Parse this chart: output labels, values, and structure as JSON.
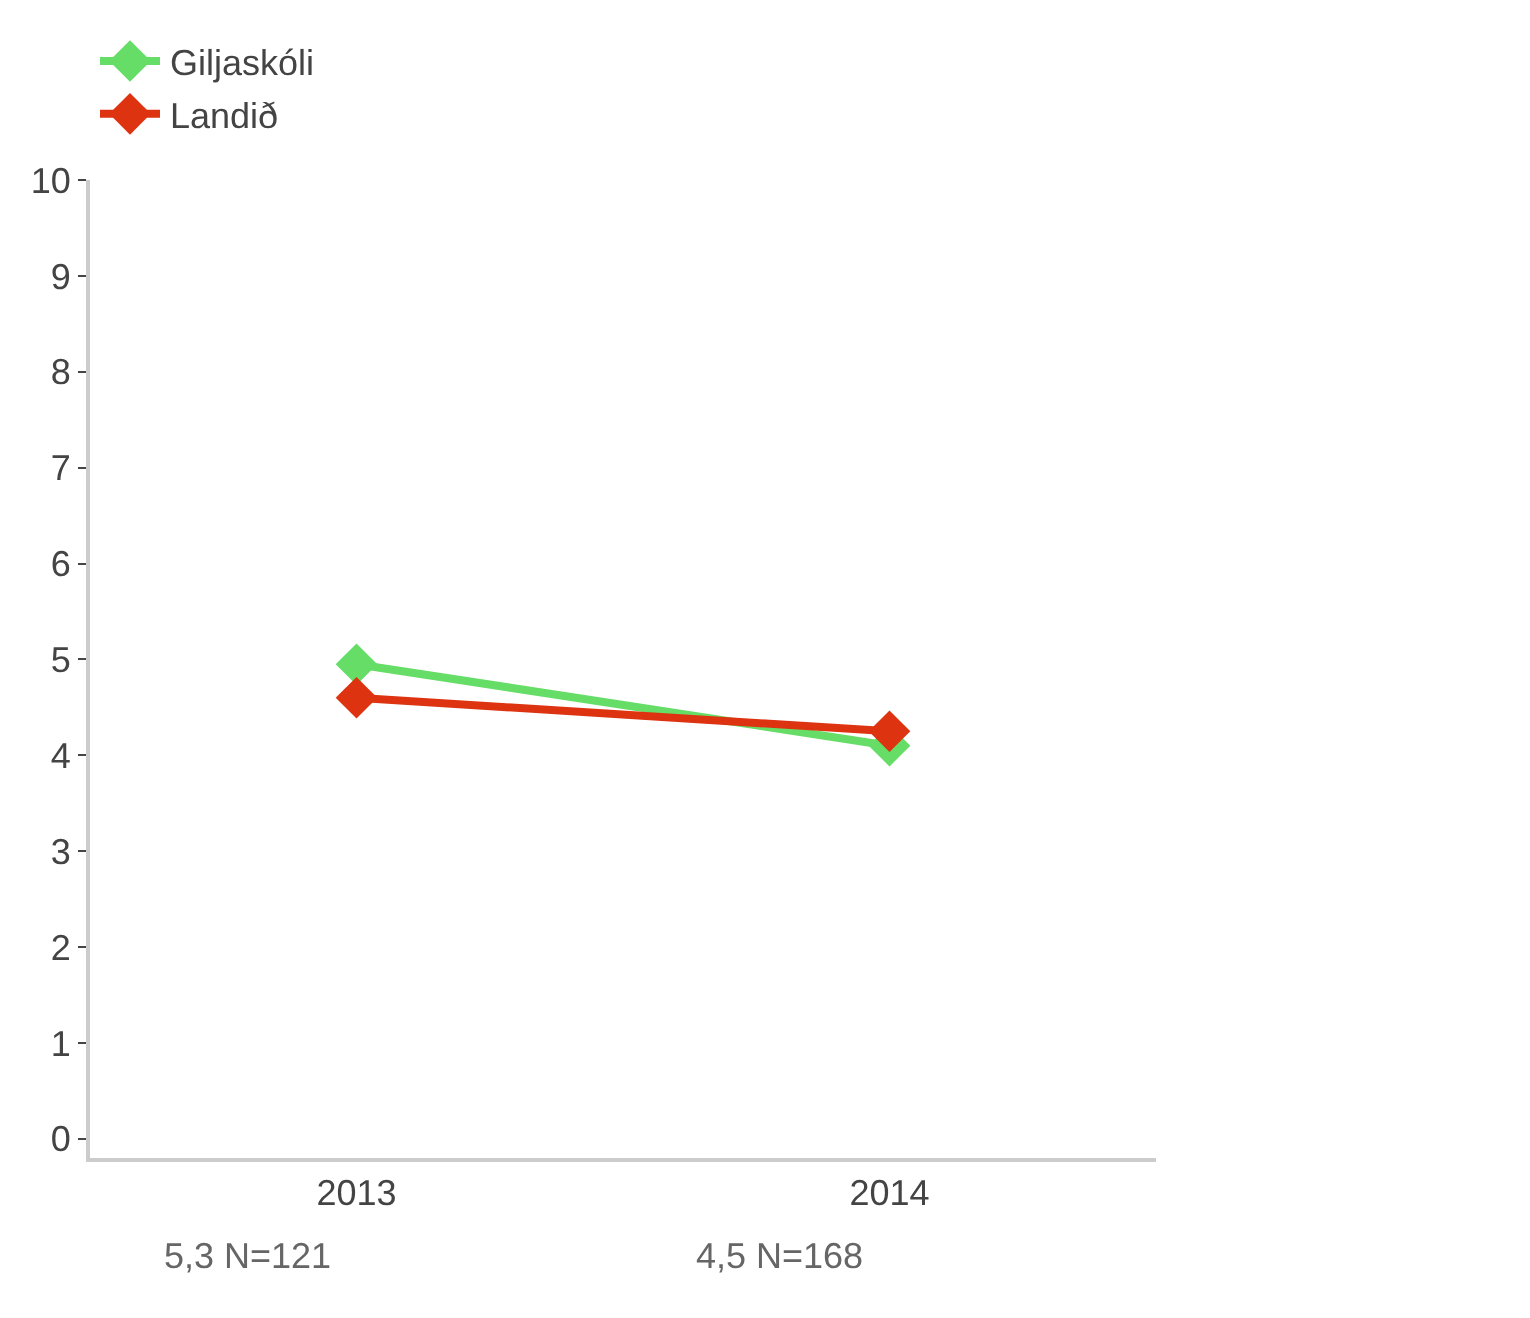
{
  "chart_data": {
    "type": "line",
    "categories": [
      "2013",
      "2014"
    ],
    "series": [
      {
        "name": "Giljaskóli",
        "color": "#66dd66",
        "values": [
          4.95,
          4.1
        ]
      },
      {
        "name": "Landið",
        "color": "#dd3311",
        "values": [
          4.6,
          4.25
        ]
      }
    ],
    "ylim": [
      -0.2,
      10
    ],
    "yticks": [
      0,
      1,
      2,
      3,
      4,
      5,
      6,
      7,
      8,
      9,
      10
    ],
    "legend": "top",
    "marker": "diamond",
    "line_style": "solid",
    "annotations": [
      "5,3 N=121",
      "4,5 N=168"
    ]
  }
}
